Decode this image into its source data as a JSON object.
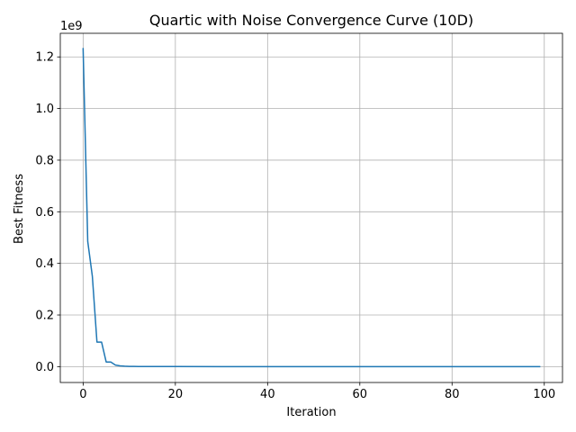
{
  "chart_data": {
    "type": "line",
    "title": "Quartic with Noise Convergence Curve (10D)",
    "xlabel": "Iteration",
    "ylabel": "Best Fitness",
    "y_offset_label": "1e9",
    "xlim": [
      -4.95,
      103.95
    ],
    "ylim": [
      -0.0615,
      1.2915
    ],
    "xticks": [
      0,
      20,
      40,
      60,
      80,
      100
    ],
    "xtick_labels": [
      "0",
      "20",
      "40",
      "60",
      "80",
      "100"
    ],
    "yticks": [
      0.0,
      0.2,
      0.4,
      0.6,
      0.8,
      1.0,
      1.2
    ],
    "ytick_labels": [
      "0.0",
      "0.2",
      "0.4",
      "0.6",
      "0.8",
      "1.0",
      "1.2"
    ],
    "grid": true,
    "series": [
      {
        "color": "#1f77b4",
        "x": [
          0,
          1,
          2,
          3,
          4,
          5,
          6,
          7,
          8,
          9,
          10,
          11,
          12,
          13,
          14,
          15,
          20,
          30,
          40,
          50,
          60,
          70,
          80,
          90,
          99
        ],
        "y": [
          1.232,
          0.485,
          0.35,
          0.095,
          0.095,
          0.018,
          0.018,
          0.006,
          0.003,
          0.0015,
          0.001,
          0.0008,
          0.0006,
          0.0005,
          0.0004,
          0.0003,
          0.0002,
          0.0001,
          0.0001,
          0.0001,
          0.0001,
          0.0001,
          0.0001,
          0.0001,
          0.0001
        ]
      }
    ]
  }
}
